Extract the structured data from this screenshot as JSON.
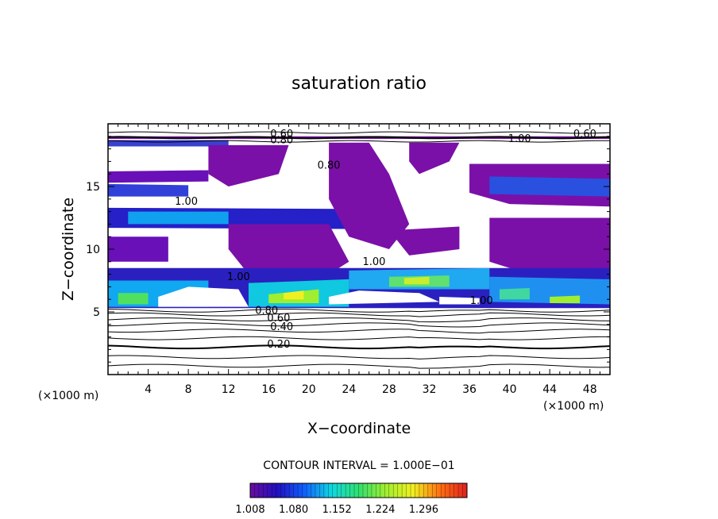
{
  "chart_data": {
    "type": "heatmap",
    "title": "saturation ratio",
    "xlabel": "X−coordinate",
    "ylabel": "Z−coordinate",
    "x_unit": "(×1000 m)",
    "y_unit": "(×1000 m)",
    "xlim": [
      0,
      50
    ],
    "ylim": [
      0,
      20
    ],
    "xticks": [
      4,
      8,
      12,
      16,
      20,
      24,
      28,
      32,
      36,
      40,
      44,
      48
    ],
    "yticks": [
      5,
      10,
      15
    ],
    "contour_interval_label": "CONTOUR INTERVAL = 1.000E−01",
    "contour_labels": [
      {
        "text": "0.20",
        "x": 17,
        "y": 2.2
      },
      {
        "text": "0.40",
        "x": 17.3,
        "y": 3.6
      },
      {
        "text": "0.60",
        "x": 17,
        "y": 4.3
      },
      {
        "text": "0.80",
        "x": 15.8,
        "y": 4.9
      },
      {
        "text": "1.00",
        "x": 7.8,
        "y": 13.6
      },
      {
        "text": "1.00",
        "x": 13,
        "y": 7.6
      },
      {
        "text": "1.00",
        "x": 26.5,
        "y": 8.8
      },
      {
        "text": "1.00",
        "x": 37.2,
        "y": 5.7
      },
      {
        "text": "1.00",
        "x": 41,
        "y": 18.6
      },
      {
        "text": "0.60",
        "x": 17.3,
        "y": 19.0
      },
      {
        "text": "0.80",
        "x": 17.3,
        "y": 18.5
      },
      {
        "text": "0.60",
        "x": 47.5,
        "y": 19.0
      },
      {
        "text": "0.80",
        "x": 22,
        "y": 16.5
      }
    ],
    "colorbar": {
      "min": 1.008,
      "max": 1.368,
      "tick_labels": [
        "1.008",
        "1.080",
        "1.152",
        "1.224",
        "1.296"
      ],
      "colors": [
        "#6a0da0",
        "#2010c0",
        "#1060ff",
        "#10d8e0",
        "#30e070",
        "#a0ee30",
        "#f0f020",
        "#ff7010",
        "#e02020"
      ]
    }
  }
}
